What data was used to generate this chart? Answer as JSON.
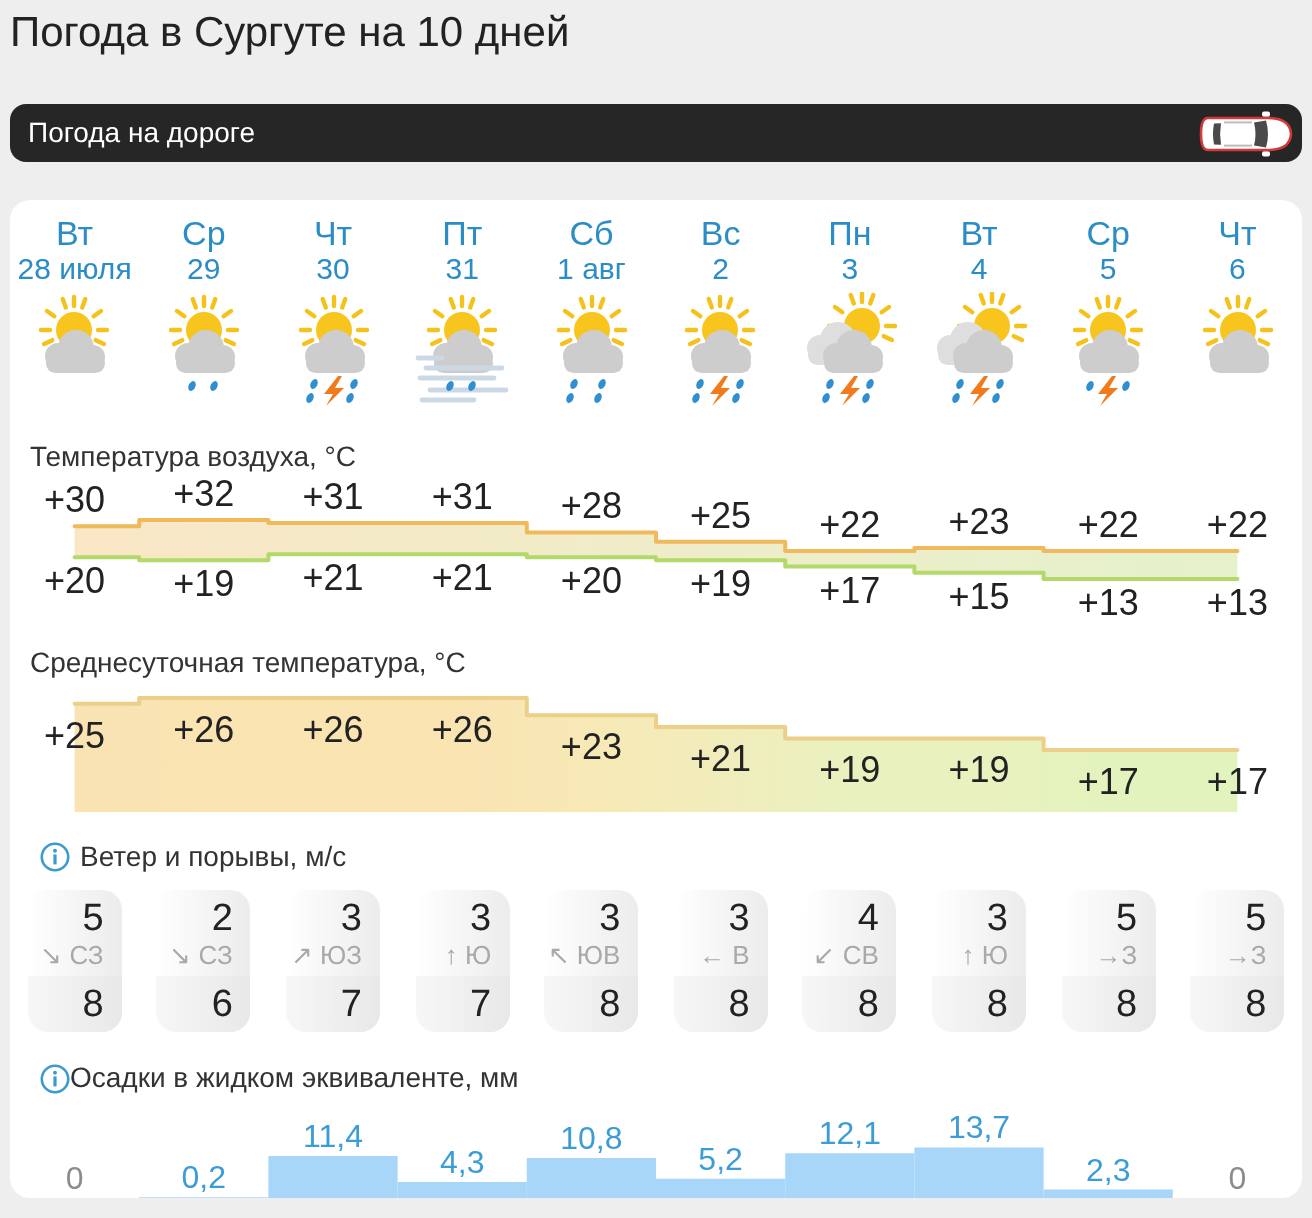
{
  "chart_data": [
    {
      "type": "other",
      "title": "Погода в Сургуте на 10 дней",
      "annotations": [
        "Погода на дороге"
      ]
    },
    {
      "type": "step",
      "title": "Температура воздуха, °C",
      "categories": [
        "Вт\n28 июля",
        "Ср\n29",
        "Чт\n30",
        "Пт\n31",
        "Сб\n1 авг",
        "Вс\n2",
        "Пн\n3",
        "Вт\n4",
        "Ср\n5",
        "Чт\n6"
      ],
      "tick_labels": "x",
      "series": [
        {
          "color": "#f0b95c",
          "values": [
            30,
            32,
            31,
            31,
            28,
            25,
            22,
            23,
            22,
            22
          ],
          "value_labels": [
            "+30",
            "+32",
            "+31",
            "+31",
            "+28",
            "+25",
            "+22",
            "+23",
            "+22",
            "+22"
          ],
          "lower": [
            20,
            19,
            21,
            21,
            20,
            19,
            17,
            15,
            13,
            13
          ],
          "upper": [
            30,
            32,
            31,
            31,
            28,
            25,
            22,
            23,
            22,
            22
          ]
        },
        {
          "color": "#b3d96b",
          "values": [
            20,
            19,
            21,
            21,
            20,
            19,
            17,
            15,
            13,
            13
          ],
          "value_labels": [
            "+20",
            "+19",
            "+21",
            "+21",
            "+20",
            "+19",
            "+17",
            "+15",
            "+13",
            "+13"
          ]
        }
      ]
    },
    {
      "type": "area",
      "title": "Среднесуточная температура, °C",
      "categories": [
        null,
        null,
        null,
        null,
        null,
        null,
        null,
        null,
        null,
        null
      ],
      "tick_labels": false,
      "color": "#ecd08a",
      "values": [
        25,
        26,
        26,
        26,
        23,
        21,
        19,
        19,
        17,
        17
      ],
      "value_labels": [
        "+25",
        "+26",
        "+26",
        "+26",
        "+23",
        "+21",
        "+19",
        "+19",
        "+17",
        "+17"
      ],
      "colors": [
        "#f9e3b3",
        "#f9e4b2",
        "#f9e4b2",
        "#f9e4b2",
        "#f7e9b6",
        "#f1ecbb",
        "#e9f1bf",
        "#e9f1bf",
        "#e3f3bd",
        "#e3f3bd"
      ]
    },
    {
      "type": "other",
      "title": "Ветер и порывы, м/с",
      "annotations": [
        "5\n↘ СЗ\n8",
        "2\n↘ СЗ\n6",
        "3\n↗ ЮЗ\n7",
        "3\n↑ Ю\n7",
        "3\n↖ ЮВ\n8",
        "3\n← В\n8",
        "4\n↙ СВ\n8",
        "3\n↑ Ю\n8",
        "5\n→З\n8",
        "5\n→З\n8"
      ]
    },
    {
      "type": "bar",
      "title": "Осадки в жидком эквиваленте, мм",
      "categories": [
        null,
        null,
        null,
        null,
        null,
        null,
        null,
        null,
        null,
        null
      ],
      "tick_labels": false,
      "color": "#a8d6f8",
      "values": [
        0,
        0.2,
        11.4,
        4.3,
        10.8,
        5.2,
        12.1,
        13.7,
        2.3,
        0
      ],
      "value_labels": [
        "0",
        "0,2",
        "11,4",
        "4,3",
        "10,8",
        "5,2",
        "12,1",
        "13,7",
        "2,3",
        "0"
      ]
    }
  ]
}
